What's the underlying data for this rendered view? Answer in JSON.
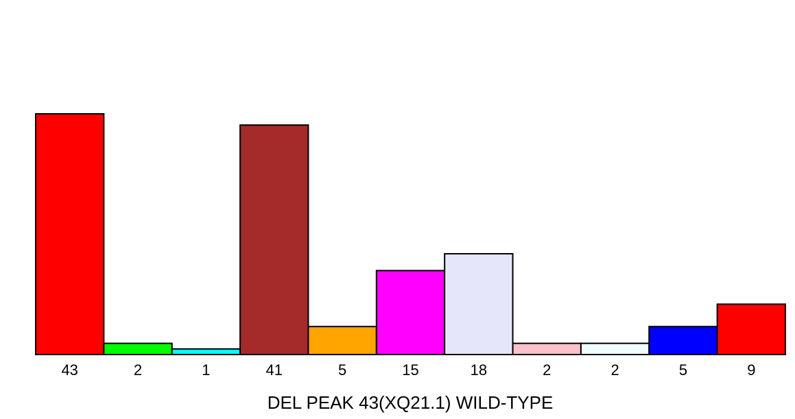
{
  "chart_data": {
    "type": "bar",
    "title": "",
    "xlabel": "DEL PEAK 43(XQ21.1) WILD-TYPE",
    "ylabel": "",
    "categories": [
      "43",
      "2",
      "1",
      "41",
      "5",
      "15",
      "18",
      "2",
      "2",
      "5",
      "9"
    ],
    "values": [
      43,
      2,
      1,
      41,
      5,
      15,
      18,
      2,
      2,
      5,
      9
    ],
    "colors": [
      "#ff0000",
      "#00ff00",
      "#00ffff",
      "#a52a2a",
      "#ffa500",
      "#ff00ff",
      "#e6e6fa",
      "#ffc0cb",
      "#f0ffff",
      "#0000ff",
      "#ff0000"
    ],
    "ylim": [
      0,
      43
    ],
    "grid": false,
    "legend": "none"
  }
}
